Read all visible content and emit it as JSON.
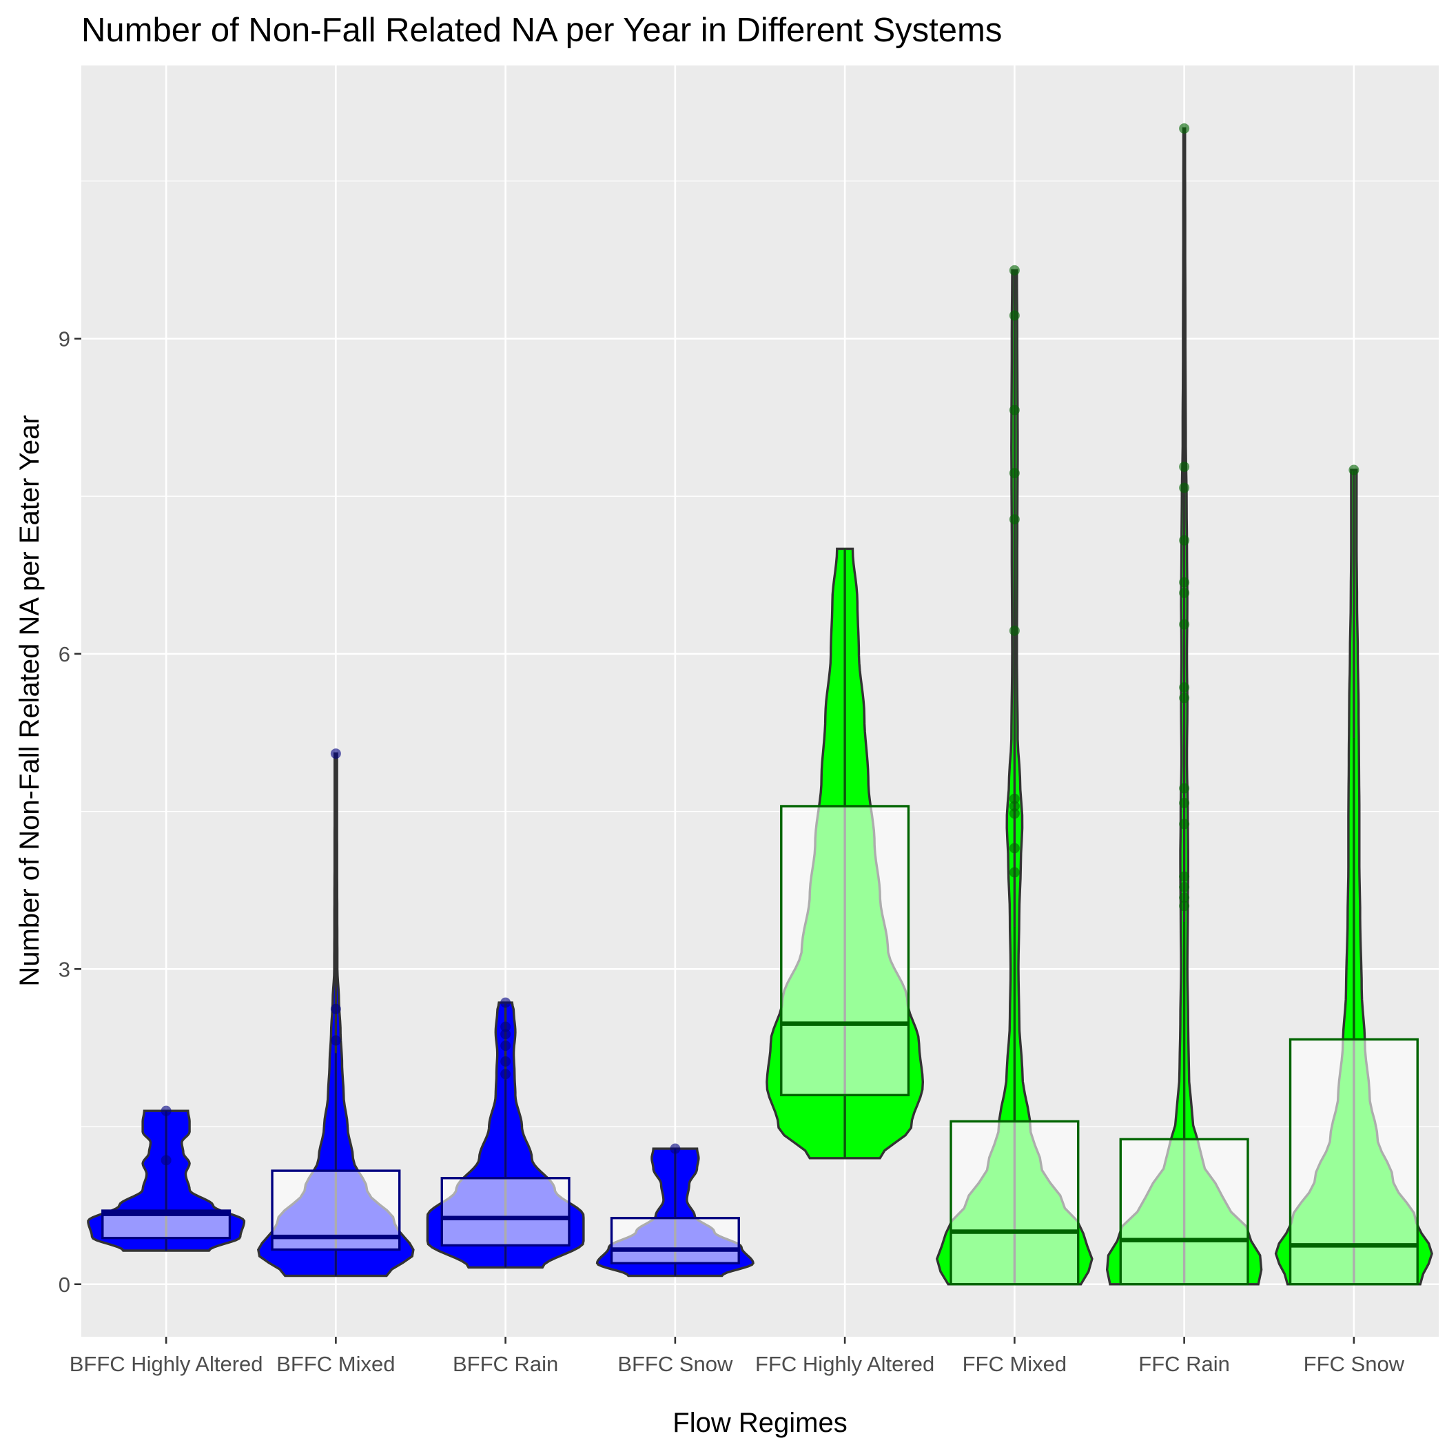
{
  "chart_data": {
    "type": "violin",
    "title": "Number of Non-Fall Related NA per Year in Different Systems",
    "xlabel": "Flow Regimes",
    "ylabel": "Number of Non-Fall Related NA per Eater Year",
    "ylim": [
      -0.5,
      11.6
    ],
    "yticks": [
      0,
      3,
      6,
      9
    ],
    "y_tick_labels": [
      "0",
      "3",
      "6",
      "9"
    ],
    "grid": true,
    "colors": {
      "panel_bg": "#ebebeb",
      "BFFC_fill": "#0000ff",
      "BFFC_box": "#000080",
      "FFC_fill": "#00ff00",
      "FFC_box": "#006400",
      "violin_outline": "#333333"
    },
    "categories": [
      "BFFC Highly Altered",
      "BFFC Mixed",
      "BFFC Rain",
      "BFFC Snow",
      "FFC Highly Altered",
      "FFC Mixed",
      "FFC Rain",
      "FFC Snow"
    ],
    "groups": [
      {
        "category": "BFFC Highly Altered",
        "system": "BFFC",
        "min": 0.32,
        "max": 1.65,
        "q1": 0.44,
        "median": 0.67,
        "q3": 0.7,
        "whisker_low": 0.32,
        "whisker_high": 1.65,
        "density": [
          [
            0.32,
            0.55
          ],
          [
            0.45,
            0.95
          ],
          [
            0.6,
            1.0
          ],
          [
            0.75,
            0.6
          ],
          [
            0.9,
            0.3
          ],
          [
            1.05,
            0.25
          ],
          [
            1.15,
            0.3
          ],
          [
            1.25,
            0.22
          ],
          [
            1.35,
            0.2
          ],
          [
            1.45,
            0.3
          ],
          [
            1.55,
            0.3
          ],
          [
            1.65,
            0.28
          ]
        ],
        "points": [
          1.65,
          1.18
        ]
      },
      {
        "category": "BFFC Mixed",
        "system": "BFFC",
        "min": 0.08,
        "max": 5.05,
        "q1": 0.33,
        "median": 0.45,
        "q3": 1.08,
        "whisker_low": 0.08,
        "whisker_high": 2.2,
        "density": [
          [
            0.08,
            0.65
          ],
          [
            0.3,
            1.0
          ],
          [
            0.6,
            0.75
          ],
          [
            0.9,
            0.4
          ],
          [
            1.2,
            0.22
          ],
          [
            1.5,
            0.15
          ],
          [
            1.8,
            0.1
          ],
          [
            2.1,
            0.08
          ],
          [
            2.4,
            0.06
          ],
          [
            2.7,
            0.04
          ],
          [
            3.0,
            0.02
          ],
          [
            3.5,
            0.018
          ],
          [
            4.0,
            0.016
          ],
          [
            4.5,
            0.015
          ],
          [
            5.05,
            0.015
          ]
        ],
        "points": [
          5.05,
          2.62,
          2.32
        ]
      },
      {
        "category": "BFFC Rain",
        "system": "BFFC",
        "min": 0.16,
        "max": 2.68,
        "q1": 0.37,
        "median": 0.63,
        "q3": 1.01,
        "whisker_low": 0.16,
        "whisker_high": 1.95,
        "density": [
          [
            0.16,
            0.45
          ],
          [
            0.4,
            0.95
          ],
          [
            0.65,
            0.95
          ],
          [
            0.9,
            0.6
          ],
          [
            1.2,
            0.32
          ],
          [
            1.5,
            0.2
          ],
          [
            1.8,
            0.12
          ],
          [
            2.0,
            0.11
          ],
          [
            2.2,
            0.1
          ],
          [
            2.4,
            0.12
          ],
          [
            2.6,
            0.1
          ],
          [
            2.68,
            0.08
          ]
        ],
        "points": [
          2.68,
          2.45,
          2.38,
          2.27,
          2.12,
          2.0
        ]
      },
      {
        "category": "BFFC Snow",
        "system": "BFFC",
        "min": 0.08,
        "max": 1.29,
        "q1": 0.2,
        "median": 0.33,
        "q3": 0.63,
        "whisker_low": 0.08,
        "whisker_high": 1.29,
        "density": [
          [
            0.08,
            0.6
          ],
          [
            0.2,
            1.0
          ],
          [
            0.35,
            0.85
          ],
          [
            0.5,
            0.5
          ],
          [
            0.65,
            0.25
          ],
          [
            0.8,
            0.15
          ],
          [
            0.95,
            0.18
          ],
          [
            1.1,
            0.28
          ],
          [
            1.2,
            0.3
          ],
          [
            1.29,
            0.28
          ]
        ],
        "points": [
          1.29
        ]
      },
      {
        "category": "FFC Highly Altered",
        "system": "FFC",
        "min": 1.2,
        "max": 7.0,
        "q1": 1.8,
        "median": 2.48,
        "q3": 4.55,
        "whisker_low": 1.2,
        "whisker_high": 7.0,
        "density": [
          [
            1.2,
            0.45
          ],
          [
            1.5,
            0.85
          ],
          [
            1.9,
            1.0
          ],
          [
            2.3,
            0.95
          ],
          [
            2.7,
            0.8
          ],
          [
            3.2,
            0.55
          ],
          [
            3.7,
            0.45
          ],
          [
            4.2,
            0.38
          ],
          [
            4.8,
            0.3
          ],
          [
            5.4,
            0.25
          ],
          [
            6.0,
            0.18
          ],
          [
            6.5,
            0.16
          ],
          [
            7.0,
            0.1
          ]
        ],
        "points": []
      },
      {
        "category": "FFC Mixed",
        "system": "FFC",
        "min": 0.0,
        "max": 9.65,
        "q1": 0.0,
        "median": 0.5,
        "q3": 1.55,
        "whisker_low": 0.0,
        "whisker_high": 3.4,
        "density": [
          [
            0.0,
            0.85
          ],
          [
            0.2,
            1.0
          ],
          [
            0.5,
            0.88
          ],
          [
            0.8,
            0.6
          ],
          [
            1.1,
            0.35
          ],
          [
            1.5,
            0.2
          ],
          [
            2.0,
            0.1
          ],
          [
            2.5,
            0.06
          ],
          [
            3.0,
            0.05
          ],
          [
            3.5,
            0.06
          ],
          [
            4.0,
            0.08
          ],
          [
            4.4,
            0.1
          ],
          [
            4.8,
            0.07
          ],
          [
            5.2,
            0.04
          ],
          [
            6.0,
            0.03
          ],
          [
            7.0,
            0.035
          ],
          [
            8.0,
            0.04
          ],
          [
            9.0,
            0.035
          ],
          [
            9.65,
            0.03
          ]
        ],
        "points": [
          9.65,
          9.22,
          8.32,
          7.72,
          7.28,
          6.22,
          4.62,
          4.55,
          4.48,
          4.15,
          3.92
        ]
      },
      {
        "category": "FFC Rain",
        "system": "FFC",
        "min": 0.0,
        "max": 11.0,
        "q1": 0.0,
        "median": 0.42,
        "q3": 1.38,
        "whisker_low": 0.0,
        "whisker_high": 3.45,
        "density": [
          [
            0.0,
            0.95
          ],
          [
            0.2,
            1.0
          ],
          [
            0.5,
            0.82
          ],
          [
            0.8,
            0.5
          ],
          [
            1.2,
            0.22
          ],
          [
            1.6,
            0.1
          ],
          [
            2.0,
            0.06
          ],
          [
            2.5,
            0.05
          ],
          [
            3.0,
            0.04
          ],
          [
            3.5,
            0.045
          ],
          [
            4.0,
            0.05
          ],
          [
            4.5,
            0.045
          ],
          [
            5.0,
            0.035
          ],
          [
            5.5,
            0.04
          ],
          [
            6.0,
            0.035
          ],
          [
            6.5,
            0.04
          ],
          [
            7.0,
            0.035
          ],
          [
            7.5,
            0.03
          ],
          [
            8.0,
            0.02
          ],
          [
            9.0,
            0.015
          ],
          [
            10.0,
            0.012
          ],
          [
            11.0,
            0.01
          ]
        ],
        "points": [
          11.0,
          7.78,
          7.58,
          7.08,
          6.68,
          6.58,
          6.28,
          5.68,
          5.58,
          4.72,
          4.58,
          4.38,
          3.88,
          3.78,
          3.68,
          3.6
        ]
      },
      {
        "category": "FFC Snow",
        "system": "FFC",
        "min": 0.0,
        "max": 7.75,
        "q1": 0.0,
        "median": 0.37,
        "q3": 2.33,
        "whisker_low": 0.0,
        "whisker_high": 5.2,
        "density": [
          [
            0.0,
            0.85
          ],
          [
            0.3,
            1.0
          ],
          [
            0.6,
            0.8
          ],
          [
            1.0,
            0.5
          ],
          [
            1.4,
            0.3
          ],
          [
            1.8,
            0.2
          ],
          [
            2.3,
            0.14
          ],
          [
            2.8,
            0.1
          ],
          [
            3.5,
            0.08
          ],
          [
            4.0,
            0.07
          ],
          [
            4.5,
            0.07
          ],
          [
            5.0,
            0.065
          ],
          [
            5.5,
            0.06
          ],
          [
            6.0,
            0.05
          ],
          [
            6.5,
            0.04
          ],
          [
            7.0,
            0.035
          ],
          [
            7.5,
            0.035
          ],
          [
            7.75,
            0.035
          ]
        ],
        "points": [
          7.75
        ]
      }
    ]
  }
}
